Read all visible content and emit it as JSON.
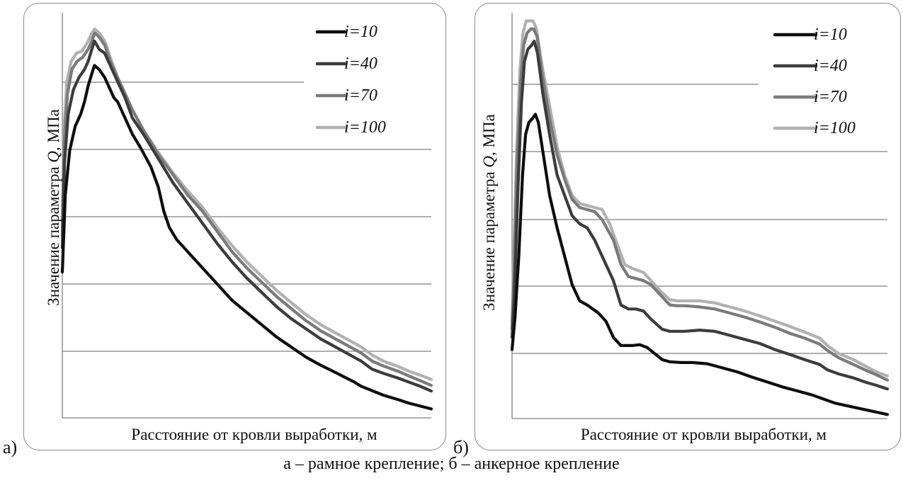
{
  "caption": "а – рамное крепление; б – анкерное крепление",
  "chart_data": [
    {
      "type": "line",
      "panel_label": "а)",
      "xlabel": "Расстояние от кровли выработки, м",
      "ylabel_prefix": "Значение параметра ",
      "ylabel_symbol": "Q",
      "ylabel_suffix": ", МПа",
      "grid": "horizontal",
      "legend_position": "top-right",
      "xlim": [
        0,
        100
      ],
      "ylim": [
        0,
        100
      ],
      "series": [
        {
          "name": "i=10",
          "color": "#0d0d0d",
          "x": [
            0,
            0.8,
            2,
            3.5,
            5,
            6,
            7,
            8,
            8.7,
            10,
            11.5,
            13,
            14,
            15,
            17,
            19,
            21,
            24,
            26,
            27.5,
            29,
            31,
            34,
            38,
            42,
            46,
            50,
            54,
            58,
            62,
            66,
            70,
            74,
            77,
            79,
            81,
            84,
            87,
            91,
            94,
            97,
            100
          ],
          "y": [
            36,
            55,
            66,
            72,
            75,
            78,
            82,
            85,
            87,
            86,
            84,
            81,
            79,
            78,
            74,
            70,
            67,
            62,
            57,
            51,
            47,
            44,
            41,
            37,
            33,
            29,
            26,
            23,
            20,
            17.5,
            15,
            13,
            11.2,
            9.8,
            8.9,
            7.8,
            6.7,
            5.6,
            4.5,
            3.6,
            2.9,
            2.2
          ]
        },
        {
          "name": "i=40",
          "color": "#3c3c3c",
          "x": [
            0,
            0.6,
            1.6,
            3,
            4.5,
            6,
            7,
            8,
            8.7,
            10,
            11.5,
            13,
            15,
            17,
            19,
            22,
            26,
            30,
            34,
            38,
            42,
            46,
            50,
            54,
            58,
            62,
            66,
            70,
            74,
            78,
            81,
            84,
            87,
            91,
            94,
            97,
            100
          ],
          "y": [
            42,
            63,
            75,
            81,
            84,
            86,
            88,
            91,
            93,
            91,
            90,
            87,
            83,
            79,
            74,
            70,
            64,
            58,
            53,
            48,
            43,
            38.5,
            34.5,
            31,
            27.5,
            24.5,
            22,
            19.5,
            17.5,
            15.5,
            14,
            12,
            11,
            9.8,
            8.8,
            7.8,
            6.6
          ]
        },
        {
          "name": "i=70",
          "color": "#7a7a7a",
          "x": [
            0,
            0.5,
            1.4,
            2.6,
            4,
            5.5,
            7,
            8,
            8.8,
            10,
            11.5,
            13,
            15,
            17,
            19,
            22,
            26,
            30,
            34,
            38,
            42,
            46,
            50,
            54,
            58,
            62,
            66,
            70,
            74,
            78,
            81,
            84,
            87,
            91,
            94,
            97,
            100
          ],
          "y": [
            45,
            68,
            80,
            86,
            88,
            89,
            91,
            93,
            95,
            94,
            92,
            88,
            84,
            80,
            76,
            71,
            65,
            60,
            55,
            51,
            46,
            41,
            37,
            33.5,
            30,
            27,
            24,
            21.5,
            19.5,
            17.5,
            16,
            14,
            12.8,
            11.5,
            10.3,
            9.2,
            8
          ]
        },
        {
          "name": "i=100",
          "color": "#b1b1b1",
          "x": [
            0,
            0.4,
            1.2,
            2.4,
            3.8,
            5.3,
            7,
            8,
            8.8,
            10,
            11.5,
            13,
            15,
            17,
            19,
            22,
            26,
            30,
            34,
            38,
            42,
            46,
            50,
            54,
            58,
            62,
            66,
            70,
            74,
            78,
            81,
            84,
            87,
            91,
            94,
            97,
            100
          ],
          "y": [
            47,
            70,
            83,
            88,
            90,
            90.5,
            93,
            95,
            96,
            95,
            93,
            89,
            84,
            80,
            76,
            71,
            65.5,
            60.5,
            56,
            52,
            47,
            42.5,
            38.5,
            35,
            31.5,
            28.5,
            25.5,
            23,
            21,
            19,
            17.5,
            15.5,
            14,
            12.7,
            11.5,
            10.5,
            9.5
          ]
        }
      ]
    },
    {
      "type": "line",
      "panel_label": "б)",
      "xlabel": "Расстояние от кровли выработки, м",
      "ylabel_prefix": "Значение параметра ",
      "ylabel_symbol": "Q",
      "ylabel_suffix": ", МПа",
      "grid": "horizontal",
      "legend_position": "top-right",
      "xlim": [
        0,
        100
      ],
      "ylim": [
        0,
        100
      ],
      "series": [
        {
          "name": "i=10",
          "color": "#0d0d0d",
          "x": [
            0,
            0.8,
            1.8,
            2.8,
            3.6,
            4.5,
            5.5,
            6.2,
            7,
            8.5,
            10,
            12,
            14,
            16,
            18,
            20,
            23,
            25,
            27,
            29,
            31,
            32,
            34,
            36,
            38,
            40,
            42,
            45,
            48,
            52,
            56,
            60,
            64,
            68,
            72,
            76,
            80,
            83,
            86,
            90,
            94,
            97,
            100
          ],
          "y": [
            17,
            25,
            40,
            60,
            70,
            73,
            74,
            75,
            73,
            64,
            55,
            47,
            40,
            33,
            29,
            28,
            26,
            24,
            20,
            18,
            18,
            18,
            18.2,
            17.5,
            16,
            14.5,
            14,
            13.8,
            13.8,
            13.5,
            12.5,
            11.5,
            10.2,
            9,
            7.8,
            6.8,
            5.8,
            4.8,
            3.8,
            3,
            2.2,
            1.6,
            1
          ]
        },
        {
          "name": "i=40",
          "color": "#3c3c3c",
          "x": [
            0,
            0.6,
            1.5,
            2.5,
            3.3,
            4.2,
            5.2,
            5.9,
            6.8,
            8.2,
            10,
            12,
            14,
            16,
            18,
            20,
            22,
            24,
            27,
            29,
            31,
            33,
            35,
            37,
            40,
            42,
            44,
            46,
            50,
            54,
            58,
            62,
            66,
            70,
            74,
            78,
            82,
            84,
            87,
            91,
            94,
            97,
            100
          ],
          "y": [
            20,
            30,
            55,
            78,
            88,
            91,
            92,
            93,
            90,
            80,
            70,
            60,
            55,
            50,
            48,
            47,
            44,
            40,
            34,
            28,
            27,
            27,
            26.5,
            24.5,
            22,
            21.5,
            21.5,
            21.5,
            21.8,
            21.5,
            20.5,
            19.5,
            18.5,
            17,
            15.8,
            14.5,
            13.3,
            12,
            11,
            10,
            9,
            8.2,
            7.3
          ]
        },
        {
          "name": "i=70",
          "color": "#7a7a7a",
          "x": [
            0,
            0.5,
            1.3,
            2.3,
            3.1,
            4,
            5,
            5.8,
            6.7,
            8,
            10,
            12,
            14,
            16,
            18,
            20,
            22,
            24,
            27,
            29,
            31,
            33,
            35,
            37,
            40,
            42,
            44,
            46,
            50,
            54,
            58,
            62,
            66,
            70,
            74,
            78,
            82,
            84,
            87,
            91,
            94,
            97,
            100
          ],
          "y": [
            22,
            35,
            62,
            83,
            92,
            95,
            96,
            96,
            94,
            85,
            74,
            65,
            59,
            54,
            52,
            51.5,
            51,
            49,
            44,
            38,
            35,
            34.5,
            34,
            33,
            30,
            28,
            27.8,
            27.8,
            27.5,
            27,
            26,
            25,
            23.8,
            22.5,
            21,
            19.8,
            18.3,
            16.8,
            15,
            13.3,
            12,
            10.8,
            9.5
          ]
        },
        {
          "name": "i=100",
          "color": "#b1b1b1",
          "x": [
            0,
            0.4,
            1.2,
            2.1,
            2.9,
            3.8,
            4.8,
            5.6,
            6.5,
            8,
            10,
            12,
            14,
            16,
            18,
            20,
            22,
            24,
            26,
            28,
            30,
            32,
            35,
            37,
            40,
            42,
            44,
            47,
            50,
            54,
            58,
            62,
            66,
            70,
            74,
            78,
            82,
            84,
            87,
            91,
            94,
            97,
            100
          ],
          "y": [
            24,
            38,
            66,
            86,
            95,
            98,
            98,
            98,
            96,
            87,
            77,
            67,
            60,
            55,
            53,
            52.5,
            52,
            51.5,
            48,
            43,
            38,
            37,
            36,
            34,
            31,
            29.3,
            29,
            29,
            29,
            28.5,
            27.5,
            26.5,
            25.3,
            24,
            22.7,
            21.3,
            19.8,
            18,
            16,
            14.5,
            13,
            11.5,
            10.5
          ]
        }
      ]
    }
  ]
}
